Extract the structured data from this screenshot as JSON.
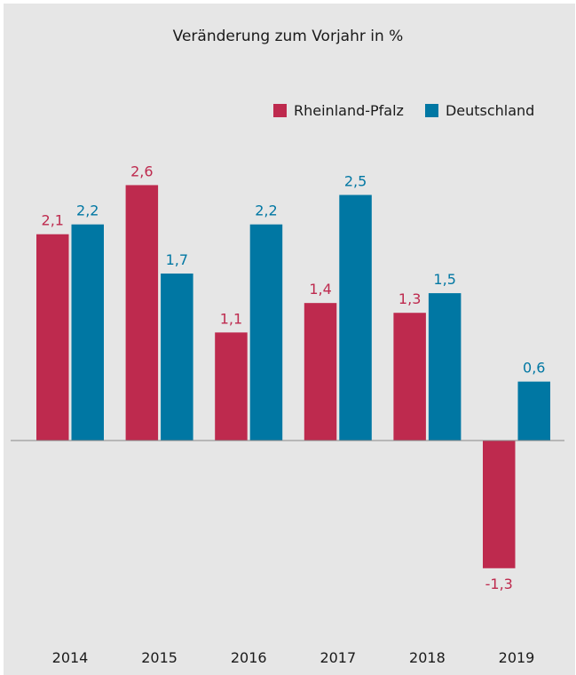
{
  "chart_data": {
    "type": "bar",
    "title": "Veränderung zum Vorjahr in %",
    "xlabel": "",
    "ylabel": "",
    "categories": [
      "2014",
      "2015",
      "2016",
      "2017",
      "2018",
      "2019"
    ],
    "series": [
      {
        "name": "Rheinland-Pfalz",
        "color": "#be2a4e",
        "values": [
          2.1,
          2.6,
          1.1,
          1.4,
          1.3,
          -1.3
        ],
        "labels": [
          "2,1",
          "2,6",
          "1,1",
          "1,4",
          "1,3",
          "-1,3"
        ]
      },
      {
        "name": "Deutschland",
        "color": "#0077a3",
        "values": [
          2.2,
          1.7,
          2.2,
          2.5,
          1.5,
          0.6
        ],
        "labels": [
          "2,2",
          "1,7",
          "2,2",
          "2,5",
          "1,5",
          "0,6"
        ]
      }
    ],
    "ylim": [
      -1.3,
      2.6
    ],
    "grid": false,
    "legend": "top-right",
    "background": "#e6e6e6",
    "axis_color": "#888888"
  }
}
